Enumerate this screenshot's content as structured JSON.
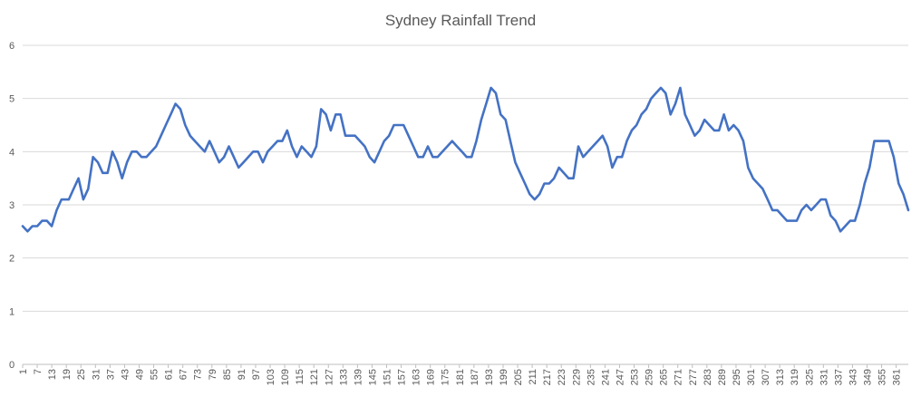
{
  "chart_data": {
    "type": "line",
    "title": "Sydney Rainfall Trend",
    "xlabel": "",
    "ylabel": "",
    "ylim": [
      0,
      6
    ],
    "yticks": [
      0,
      1,
      2,
      3,
      4,
      5,
      6
    ],
    "grid": "horizontal",
    "legend": "none",
    "x_tick_labels": [
      1,
      7,
      13,
      19,
      25,
      31,
      37,
      43,
      49,
      55,
      61,
      67,
      73,
      79,
      85,
      91,
      97,
      103,
      109,
      115,
      121,
      127,
      133,
      139,
      145,
      151,
      157,
      163,
      169,
      175,
      181,
      187,
      193,
      199,
      205,
      211,
      217,
      223,
      229,
      235,
      241,
      247,
      253,
      259,
      265,
      271,
      277,
      283,
      289,
      295,
      301,
      307,
      313,
      319,
      325,
      331,
      337,
      343,
      349,
      355,
      361
    ],
    "x_start": 1,
    "x_end": 366,
    "series": [
      {
        "color": "#4472C4",
        "points": [
          [
            1,
            2.6
          ],
          [
            3,
            2.5
          ],
          [
            5,
            2.6
          ],
          [
            7,
            2.6
          ],
          [
            9,
            2.7
          ],
          [
            11,
            2.7
          ],
          [
            13,
            2.6
          ],
          [
            15,
            2.9
          ],
          [
            17,
            3.1
          ],
          [
            20,
            3.1
          ],
          [
            22,
            3.3
          ],
          [
            24,
            3.5
          ],
          [
            26,
            3.1
          ],
          [
            28,
            3.3
          ],
          [
            30,
            3.9
          ],
          [
            32,
            3.8
          ],
          [
            34,
            3.6
          ],
          [
            36,
            3.6
          ],
          [
            38,
            4.0
          ],
          [
            40,
            3.8
          ],
          [
            42,
            3.5
          ],
          [
            44,
            3.8
          ],
          [
            46,
            4.0
          ],
          [
            48,
            4.0
          ],
          [
            50,
            3.9
          ],
          [
            52,
            3.9
          ],
          [
            54,
            4.0
          ],
          [
            56,
            4.1
          ],
          [
            58,
            4.3
          ],
          [
            60,
            4.5
          ],
          [
            62,
            4.7
          ],
          [
            64,
            4.9
          ],
          [
            66,
            4.8
          ],
          [
            68,
            4.5
          ],
          [
            70,
            4.3
          ],
          [
            72,
            4.2
          ],
          [
            74,
            4.1
          ],
          [
            76,
            4.0
          ],
          [
            78,
            4.2
          ],
          [
            80,
            4.0
          ],
          [
            82,
            3.8
          ],
          [
            84,
            3.9
          ],
          [
            86,
            4.1
          ],
          [
            88,
            3.9
          ],
          [
            90,
            3.7
          ],
          [
            92,
            3.8
          ],
          [
            94,
            3.9
          ],
          [
            96,
            4.0
          ],
          [
            98,
            4.0
          ],
          [
            100,
            3.8
          ],
          [
            102,
            4.0
          ],
          [
            104,
            4.1
          ],
          [
            106,
            4.2
          ],
          [
            108,
            4.2
          ],
          [
            110,
            4.4
          ],
          [
            112,
            4.1
          ],
          [
            114,
            3.9
          ],
          [
            116,
            4.1
          ],
          [
            118,
            4.0
          ],
          [
            120,
            3.9
          ],
          [
            122,
            4.1
          ],
          [
            124,
            4.8
          ],
          [
            126,
            4.7
          ],
          [
            128,
            4.4
          ],
          [
            130,
            4.7
          ],
          [
            132,
            4.7
          ],
          [
            134,
            4.3
          ],
          [
            136,
            4.3
          ],
          [
            138,
            4.3
          ],
          [
            140,
            4.2
          ],
          [
            142,
            4.1
          ],
          [
            144,
            3.9
          ],
          [
            146,
            3.8
          ],
          [
            148,
            4.0
          ],
          [
            150,
            4.2
          ],
          [
            152,
            4.3
          ],
          [
            154,
            4.5
          ],
          [
            156,
            4.5
          ],
          [
            158,
            4.5
          ],
          [
            160,
            4.3
          ],
          [
            162,
            4.1
          ],
          [
            164,
            3.9
          ],
          [
            166,
            3.9
          ],
          [
            168,
            4.1
          ],
          [
            170,
            3.9
          ],
          [
            172,
            3.9
          ],
          [
            174,
            4.0
          ],
          [
            176,
            4.1
          ],
          [
            178,
            4.2
          ],
          [
            180,
            4.1
          ],
          [
            182,
            4.0
          ],
          [
            184,
            3.9
          ],
          [
            186,
            3.9
          ],
          [
            188,
            4.2
          ],
          [
            190,
            4.6
          ],
          [
            192,
            4.9
          ],
          [
            194,
            5.2
          ],
          [
            196,
            5.1
          ],
          [
            198,
            4.7
          ],
          [
            200,
            4.6
          ],
          [
            202,
            4.2
          ],
          [
            204,
            3.8
          ],
          [
            206,
            3.6
          ],
          [
            208,
            3.4
          ],
          [
            210,
            3.2
          ],
          [
            212,
            3.1
          ],
          [
            214,
            3.2
          ],
          [
            216,
            3.4
          ],
          [
            218,
            3.4
          ],
          [
            220,
            3.5
          ],
          [
            222,
            3.7
          ],
          [
            224,
            3.6
          ],
          [
            226,
            3.5
          ],
          [
            228,
            3.5
          ],
          [
            230,
            4.1
          ],
          [
            232,
            3.9
          ],
          [
            234,
            4.0
          ],
          [
            236,
            4.1
          ],
          [
            238,
            4.2
          ],
          [
            240,
            4.3
          ],
          [
            242,
            4.1
          ],
          [
            244,
            3.7
          ],
          [
            246,
            3.9
          ],
          [
            248,
            3.9
          ],
          [
            250,
            4.2
          ],
          [
            252,
            4.4
          ],
          [
            254,
            4.5
          ],
          [
            256,
            4.7
          ],
          [
            258,
            4.8
          ],
          [
            260,
            5.0
          ],
          [
            262,
            5.1
          ],
          [
            264,
            5.2
          ],
          [
            266,
            5.1
          ],
          [
            268,
            4.7
          ],
          [
            270,
            4.9
          ],
          [
            272,
            5.2
          ],
          [
            274,
            4.7
          ],
          [
            276,
            4.5
          ],
          [
            278,
            4.3
          ],
          [
            280,
            4.4
          ],
          [
            282,
            4.6
          ],
          [
            284,
            4.5
          ],
          [
            286,
            4.4
          ],
          [
            288,
            4.4
          ],
          [
            290,
            4.7
          ],
          [
            292,
            4.4
          ],
          [
            294,
            4.5
          ],
          [
            296,
            4.4
          ],
          [
            298,
            4.2
          ],
          [
            300,
            3.7
          ],
          [
            302,
            3.5
          ],
          [
            304,
            3.4
          ],
          [
            306,
            3.3
          ],
          [
            308,
            3.1
          ],
          [
            310,
            2.9
          ],
          [
            312,
            2.9
          ],
          [
            314,
            2.8
          ],
          [
            316,
            2.7
          ],
          [
            318,
            2.7
          ],
          [
            320,
            2.7
          ],
          [
            322,
            2.9
          ],
          [
            324,
            3.0
          ],
          [
            326,
            2.9
          ],
          [
            328,
            3.0
          ],
          [
            330,
            3.1
          ],
          [
            332,
            3.1
          ],
          [
            334,
            2.8
          ],
          [
            336,
            2.7
          ],
          [
            338,
            2.5
          ],
          [
            340,
            2.6
          ],
          [
            342,
            2.7
          ],
          [
            344,
            2.7
          ],
          [
            346,
            3.0
          ],
          [
            348,
            3.4
          ],
          [
            350,
            3.7
          ],
          [
            352,
            4.2
          ],
          [
            354,
            4.2
          ],
          [
            356,
            4.2
          ],
          [
            358,
            4.2
          ],
          [
            360,
            3.9
          ],
          [
            362,
            3.4
          ],
          [
            364,
            3.2
          ],
          [
            366,
            2.9
          ]
        ]
      }
    ]
  }
}
